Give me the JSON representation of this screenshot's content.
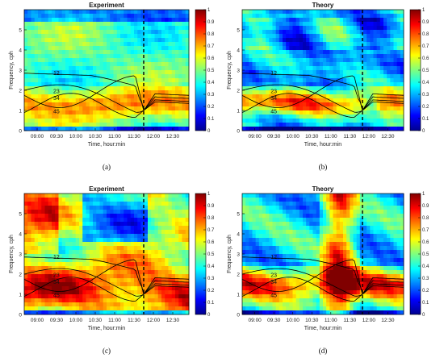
{
  "chart_data": [
    {
      "type": "heatmap",
      "panel": "(a)",
      "title": "Experiment",
      "xlabel": "Time, hour:min",
      "ylabel": "Frequency, cph",
      "x_ticks": [
        "09:00",
        "09:30",
        "10:00",
        "10:30",
        "11:00",
        "11:30",
        "12:00",
        "12:30"
      ],
      "y_ticks": [
        "0",
        "1",
        "2",
        "3",
        "4",
        "5"
      ],
      "ylim": [
        0,
        6
      ],
      "colorbar": {
        "min": 0,
        "max": 1,
        "ticks": [
          "0",
          "0.1",
          "0.2",
          "0.3",
          "0.4",
          "0.5",
          "0.6",
          "0.7",
          "0.8",
          "0.9",
          "1"
        ]
      },
      "dashed_line_time": "11:45",
      "curve_labels": [
        "12",
        "23",
        "34",
        "45"
      ]
    },
    {
      "type": "heatmap",
      "panel": "(b)",
      "title": "Theory",
      "xlabel": "Time, hour:min",
      "ylabel": "Frequency, cph",
      "x_ticks": [
        "09:00",
        "09:30",
        "10:00",
        "10:30",
        "11:00",
        "11:30",
        "12:00",
        "12:30"
      ],
      "y_ticks": [
        "0",
        "1",
        "2",
        "3",
        "4",
        "5"
      ],
      "ylim": [
        0,
        6
      ],
      "colorbar": {
        "min": 0,
        "max": 1,
        "ticks": [
          "0",
          "0.1",
          "0.2",
          "0.3",
          "0.4",
          "0.5",
          "0.6",
          "0.7",
          "0.8",
          "0.9",
          "1"
        ]
      },
      "dashed_line_time": "11:50",
      "curve_labels": [
        "12",
        "23",
        "34",
        "45"
      ]
    },
    {
      "type": "heatmap",
      "panel": "(c)",
      "title": "Experiment",
      "xlabel": "Time, hour:min",
      "ylabel": "Frequency, cph",
      "x_ticks": [
        "09:00",
        "09:30",
        "10:00",
        "10:30",
        "11:00",
        "11:30",
        "12:00",
        "12:30"
      ],
      "y_ticks": [
        "0",
        "1",
        "2",
        "3",
        "4",
        "5"
      ],
      "ylim": [
        0,
        6
      ],
      "colorbar": {
        "min": 0,
        "max": 1,
        "ticks": [
          "0",
          "0.1",
          "0.2",
          "0.3",
          "0.4",
          "0.5",
          "0.6",
          "0.7",
          "0.8",
          "0.9",
          "1"
        ]
      },
      "dashed_line_time": "11:45",
      "curve_labels": [
        "12",
        "23",
        "34",
        "45"
      ]
    },
    {
      "type": "heatmap",
      "panel": "(d)",
      "title": "Theory",
      "xlabel": "Time, hour:min",
      "ylabel": "Frequency, cph",
      "x_ticks": [
        "09:00",
        "09:30",
        "10:00",
        "10:30",
        "11:00",
        "11:30",
        "12:00",
        "12:30"
      ],
      "y_ticks": [
        "0",
        "1",
        "2",
        "3",
        "4",
        "5"
      ],
      "ylim": [
        0,
        6
      ],
      "colorbar": {
        "min": 0,
        "max": 1,
        "ticks": [
          "0",
          "0.1",
          "0.2",
          "0.3",
          "0.4",
          "0.5",
          "0.6",
          "0.7",
          "0.8",
          "0.9",
          "1"
        ]
      },
      "dashed_line_time": "11:50",
      "curve_labels": [
        "12",
        "23",
        "34",
        "45"
      ]
    }
  ]
}
